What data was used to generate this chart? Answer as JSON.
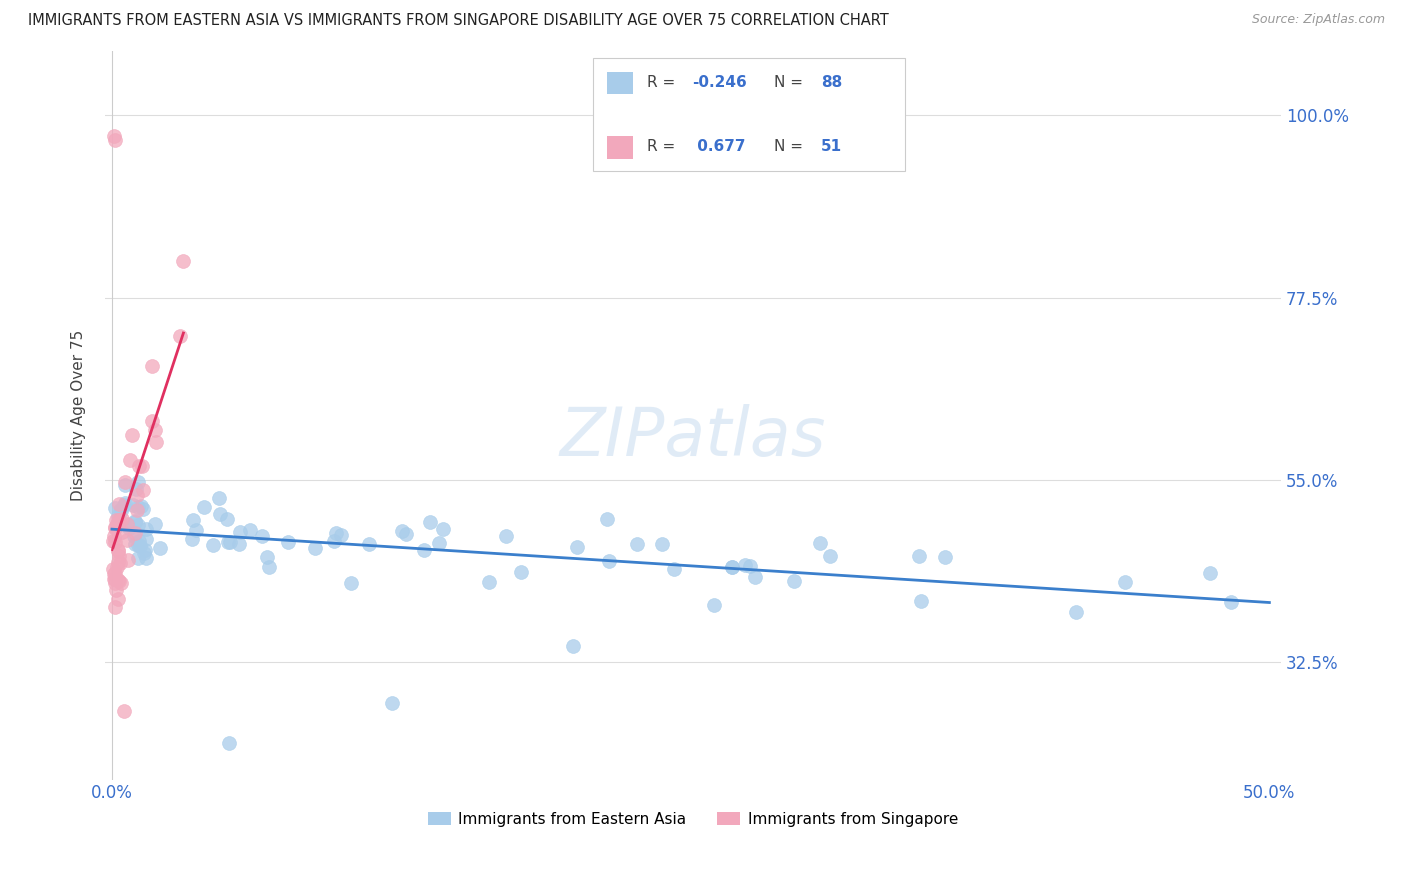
{
  "title": "IMMIGRANTS FROM EASTERN ASIA VS IMMIGRANTS FROM SINGAPORE DISABILITY AGE OVER 75 CORRELATION CHART",
  "source": "Source: ZipAtlas.com",
  "ylabel": "Disability Age Over 75",
  "legend_label_1": "Immigrants from Eastern Asia",
  "legend_label_2": "Immigrants from Singapore",
  "R1": -0.246,
  "N1": 88,
  "R2": 0.677,
  "N2": 51,
  "xlim_min": -0.003,
  "xlim_max": 0.505,
  "ylim_min": 0.18,
  "ylim_max": 1.08,
  "xtick_positions": [
    0.0,
    0.1,
    0.2,
    0.3,
    0.4,
    0.5
  ],
  "xticklabels": [
    "0.0%",
    "",
    "",
    "",
    "",
    "50.0%"
  ],
  "ytick_positions": [
    0.325,
    0.55,
    0.775,
    1.0
  ],
  "yticklabels": [
    "32.5%",
    "55.0%",
    "77.5%",
    "100.0%"
  ],
  "color_blue": "#A8CCEA",
  "color_pink": "#F2A8BC",
  "color_blue_line": "#3B7FCC",
  "color_pink_line": "#E03060",
  "watermark": "ZIPatlas",
  "blue_scatter_seed": 12345,
  "pink_scatter_seed": 67890
}
